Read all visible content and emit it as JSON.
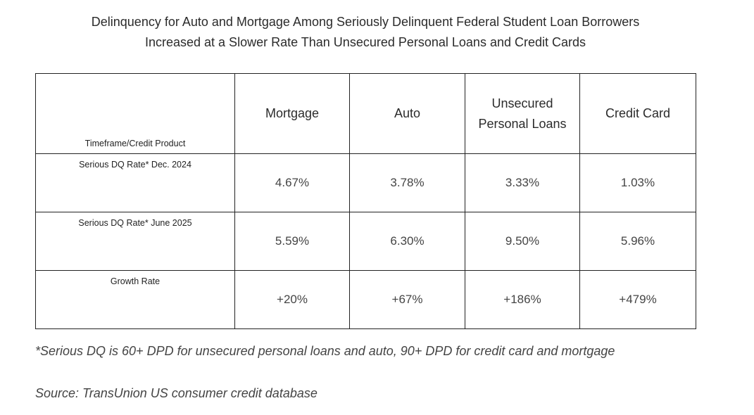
{
  "title": {
    "line1": "Delinquency for Auto and Mortgage Among Seriously Delinquent Federal Student Loan Borrowers",
    "line2": "Increased at a Slower Rate Than Unsecured Personal Loans and Credit Cards"
  },
  "table": {
    "corner_label": "Timeframe/Credit Product",
    "columns": [
      "Mortgage",
      "Auto",
      "Unsecured Personal Loans",
      "Credit Card"
    ],
    "rows": [
      {
        "label": "Serious DQ Rate* Dec. 2024",
        "values": [
          "4.67%",
          "3.78%",
          "3.33%",
          "1.03%"
        ]
      },
      {
        "label": "Serious DQ Rate* June 2025",
        "values": [
          "5.59%",
          "6.30%",
          "9.50%",
          "5.96%"
        ]
      },
      {
        "label": "Growth Rate",
        "values": [
          "+20%",
          "+67%",
          "+186%",
          "+479%"
        ]
      }
    ]
  },
  "footnote": "*Serious DQ is 60+ DPD for unsecured personal loans and auto, 90+ DPD for credit card and mortgage",
  "source": "Source: TransUnion US consumer credit database"
}
